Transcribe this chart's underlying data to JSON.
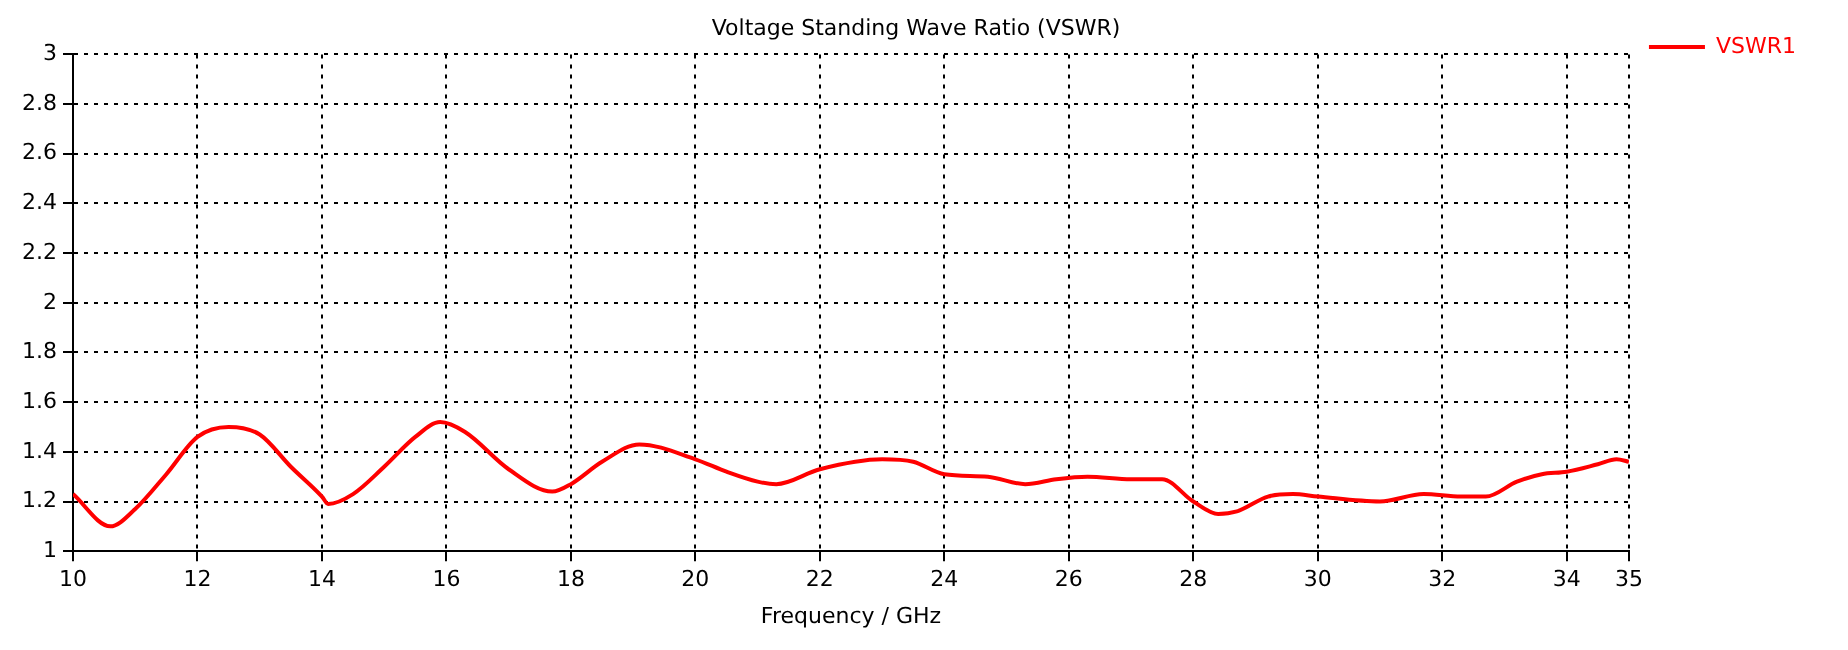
{
  "chart_data": {
    "type": "line",
    "title": "Voltage Standing Wave Ratio (VSWR)",
    "xlabel": "Frequency / GHz",
    "xlim": [
      10,
      35
    ],
    "xticks": [
      10,
      12,
      14,
      16,
      18,
      20,
      22,
      24,
      26,
      28,
      30,
      32,
      34,
      35
    ],
    "ylim": [
      1,
      3
    ],
    "yticks": [
      1,
      1.2,
      1.4,
      1.6,
      1.8,
      2,
      2.2,
      2.4,
      2.6,
      2.8,
      3
    ],
    "grid": true,
    "legend": "top right",
    "marker": "none",
    "line_style": "solid",
    "series": [
      {
        "name": "VSWR1",
        "color": "#ff0000",
        "x": [
          10,
          10.6,
          11,
          11.5,
          12,
          12.5,
          13,
          13.5,
          14,
          14.1,
          14.5,
          15,
          15.5,
          15.9,
          16.3,
          17,
          17.7,
          18,
          18.5,
          19.1,
          20,
          20.5,
          21,
          21.3,
          22,
          23,
          23.5,
          24,
          24.7,
          25.3,
          25.8,
          26.3,
          27,
          27.5,
          28,
          28.4,
          28.7,
          29.2,
          29.6,
          30,
          31,
          31.7,
          32.3,
          32.7,
          33.2,
          33.6,
          34,
          34.5,
          34.8,
          35
        ],
        "values": [
          1.23,
          1.1,
          1.17,
          1.31,
          1.46,
          1.5,
          1.47,
          1.34,
          1.22,
          1.19,
          1.23,
          1.34,
          1.46,
          1.52,
          1.48,
          1.33,
          1.24,
          1.27,
          1.36,
          1.43,
          1.37,
          1.32,
          1.28,
          1.27,
          1.33,
          1.37,
          1.36,
          1.31,
          1.3,
          1.27,
          1.29,
          1.3,
          1.29,
          1.29,
          1.2,
          1.15,
          1.16,
          1.22,
          1.23,
          1.22,
          1.2,
          1.23,
          1.22,
          1.22,
          1.28,
          1.31,
          1.32,
          1.35,
          1.37,
          1.36
        ]
      }
    ]
  }
}
